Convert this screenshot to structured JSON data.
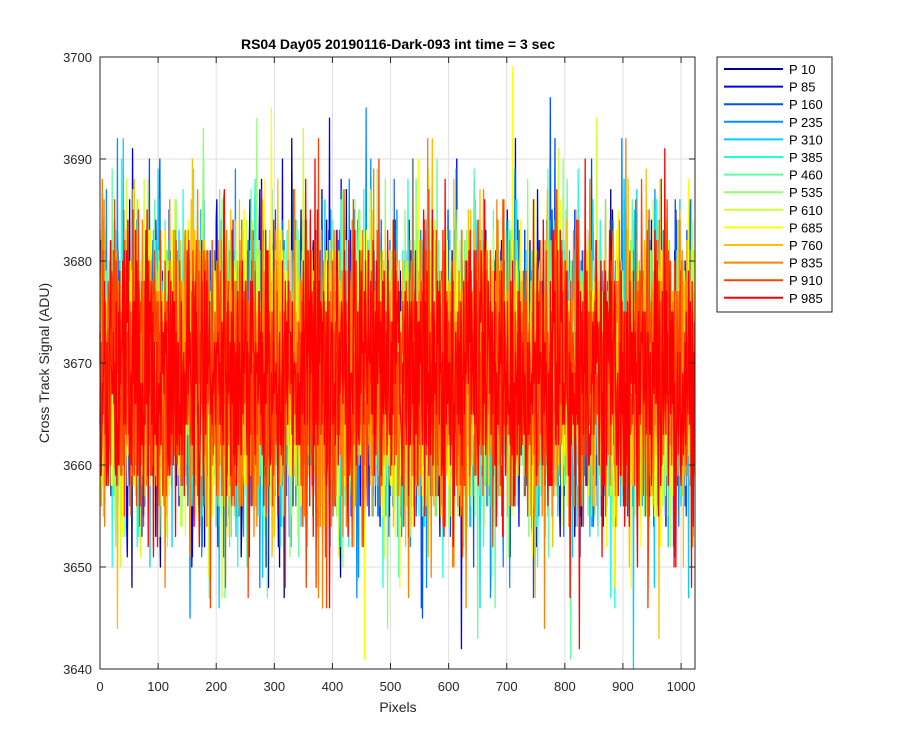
{
  "chart_data": {
    "type": "line",
    "title": "RS04 Day05 20190116-Dark-093 int time = 3 sec",
    "xlabel": "Pixels",
    "ylabel": "Cross Track Signal (ADU)",
    "xlim": [
      0,
      1024
    ],
    "ylim": [
      3640,
      3700
    ],
    "xticks": [
      0,
      100,
      200,
      300,
      400,
      500,
      600,
      700,
      800,
      900,
      1000
    ],
    "yticks": [
      3640,
      3650,
      3660,
      3670,
      3680,
      3690,
      3700
    ],
    "grid": true,
    "legend_position": "outside-top-right",
    "signal_model": {
      "mean": 3669,
      "std": 7,
      "points_per_series": 1024
    },
    "series": [
      {
        "name": "P 10",
        "color": "#00008f",
        "extreme_values": [
          {
            "x": 55,
            "y": 3648
          },
          {
            "x": 290,
            "y": 3648
          },
          {
            "x": 330,
            "y": 3692
          }
        ]
      },
      {
        "name": "P 85",
        "color": "#0000ef",
        "extreme_values": [
          {
            "x": 395,
            "y": 3694
          },
          {
            "x": 622,
            "y": 3642
          },
          {
            "x": 715,
            "y": 3692
          }
        ]
      },
      {
        "name": "P 160",
        "color": "#0050ff",
        "extreme_values": [
          {
            "x": 775,
            "y": 3696
          },
          {
            "x": 555,
            "y": 3645
          },
          {
            "x": 85,
            "y": 3690
          }
        ]
      },
      {
        "name": "P 235",
        "color": "#0090ff",
        "extreme_values": [
          {
            "x": 30,
            "y": 3692
          },
          {
            "x": 458,
            "y": 3695
          },
          {
            "x": 155,
            "y": 3645
          }
        ]
      },
      {
        "name": "P 310",
        "color": "#00d0ff",
        "extreme_values": [
          {
            "x": 40,
            "y": 3692
          },
          {
            "x": 918,
            "y": 3640
          },
          {
            "x": 100,
            "y": 3689
          }
        ]
      },
      {
        "name": "P 385",
        "color": "#20ffdf",
        "extreme_values": [
          {
            "x": 112,
            "y": 3684
          },
          {
            "x": 530,
            "y": 3688
          },
          {
            "x": 660,
            "y": 3652
          }
        ]
      },
      {
        "name": "P 460",
        "color": "#60ff9f",
        "extreme_values": [
          {
            "x": 650,
            "y": 3643
          },
          {
            "x": 810,
            "y": 3641
          },
          {
            "x": 580,
            "y": 3690
          }
        ]
      },
      {
        "name": "P 535",
        "color": "#90ff70",
        "extreme_values": [
          {
            "x": 178,
            "y": 3693
          },
          {
            "x": 270,
            "y": 3694
          },
          {
            "x": 495,
            "y": 3644
          }
        ]
      },
      {
        "name": "P 610",
        "color": "#cfff30",
        "extreme_values": [
          {
            "x": 855,
            "y": 3694
          },
          {
            "x": 350,
            "y": 3693
          },
          {
            "x": 210,
            "y": 3647
          }
        ]
      },
      {
        "name": "P 685",
        "color": "#ffff00",
        "extreme_values": [
          {
            "x": 710,
            "y": 3699
          },
          {
            "x": 295,
            "y": 3695
          },
          {
            "x": 455,
            "y": 3641
          }
        ]
      },
      {
        "name": "P 760",
        "color": "#ffc000",
        "extreme_values": [
          {
            "x": 30,
            "y": 3644
          },
          {
            "x": 962,
            "y": 3643
          },
          {
            "x": 240,
            "y": 3686
          }
        ]
      },
      {
        "name": "P 835",
        "color": "#ff8000",
        "extreme_values": [
          {
            "x": 905,
            "y": 3692
          },
          {
            "x": 765,
            "y": 3644
          },
          {
            "x": 660,
            "y": 3687
          }
        ]
      },
      {
        "name": "P 910",
        "color": "#ff4000",
        "extreme_values": [
          {
            "x": 480,
            "y": 3690
          },
          {
            "x": 255,
            "y": 3647
          },
          {
            "x": 390,
            "y": 3646
          }
        ]
      },
      {
        "name": "P 985",
        "color": "#ff0000",
        "extreme_values": [
          {
            "x": 835,
            "y": 3690
          },
          {
            "x": 825,
            "y": 3642
          },
          {
            "x": 370,
            "y": 3690
          }
        ]
      }
    ]
  }
}
